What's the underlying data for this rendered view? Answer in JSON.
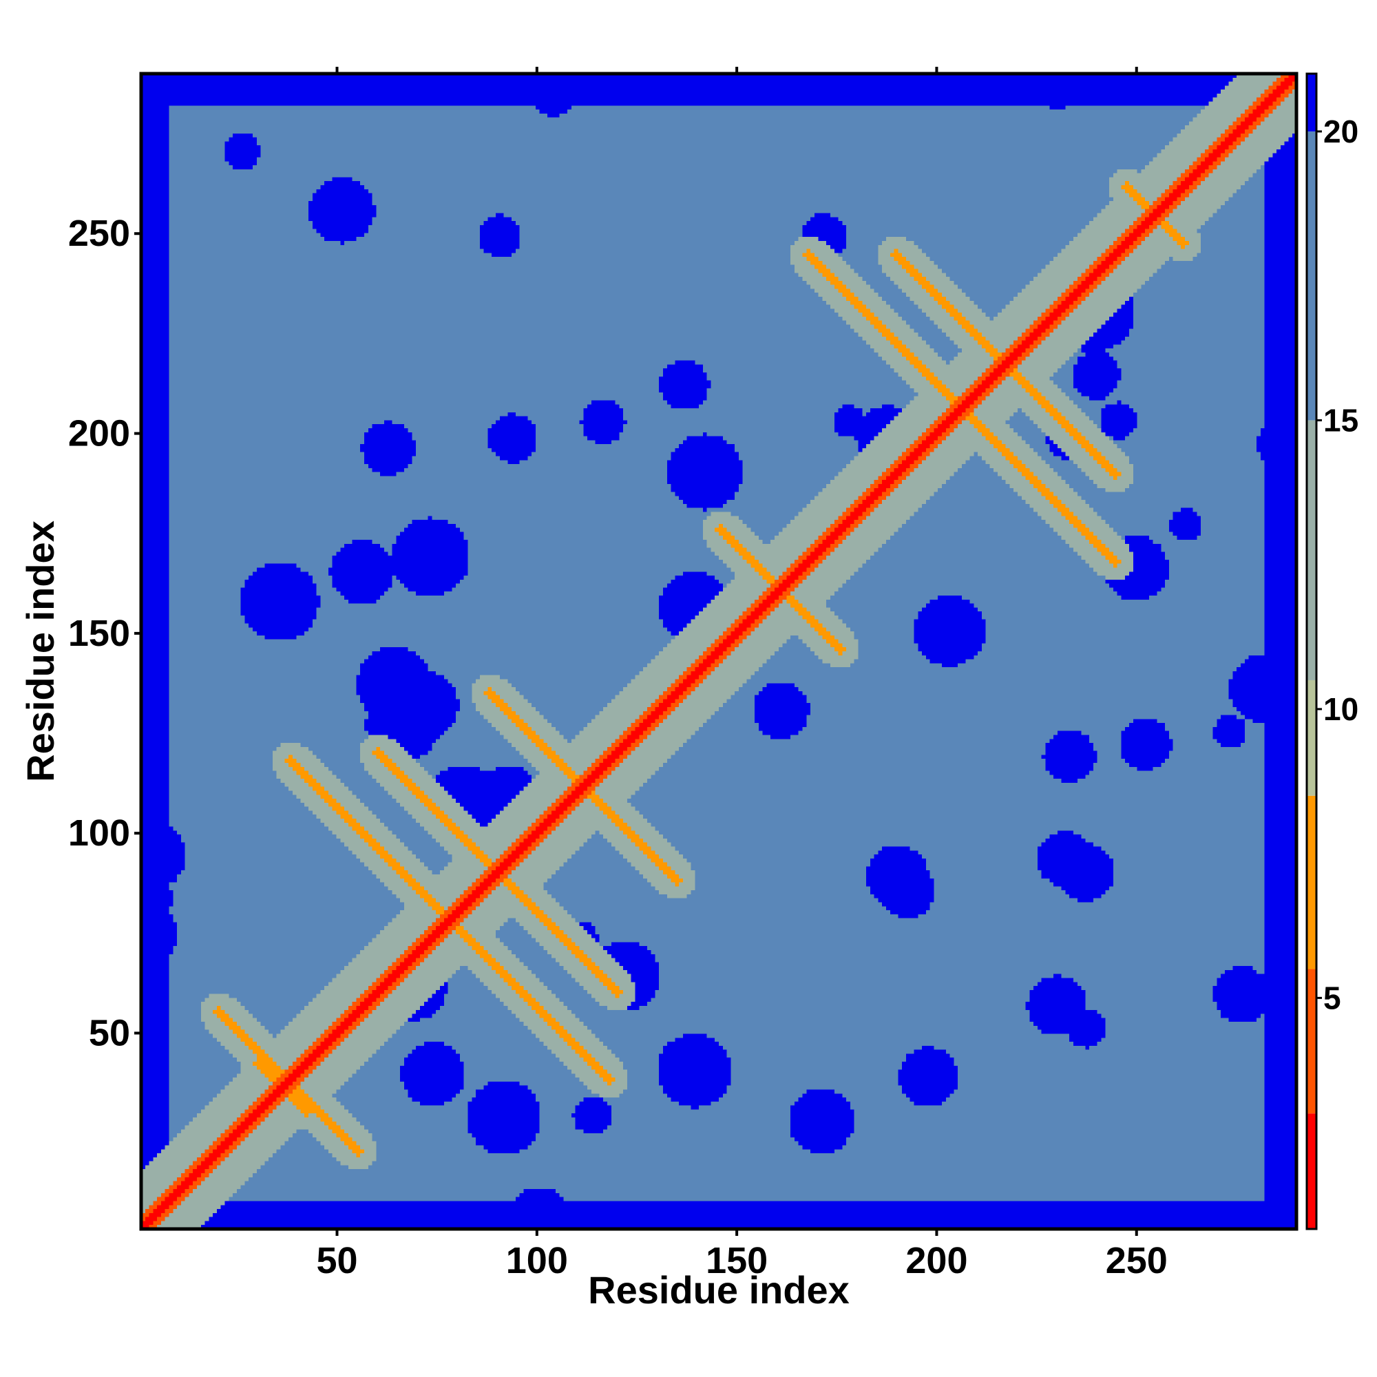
{
  "chart_data": {
    "type": "heatmap",
    "title": "",
    "xlabel": "Residue index",
    "ylabel": "Residue index",
    "n_residues": 290,
    "xlim": [
      1,
      290
    ],
    "ylim": [
      1,
      290
    ],
    "x_ticks": [
      50,
      100,
      150,
      200,
      250
    ],
    "y_ticks": [
      50,
      100,
      150,
      200,
      250
    ],
    "colorbar": {
      "range": [
        1,
        21
      ],
      "ticks": [
        5,
        10,
        15,
        20
      ],
      "bands": [
        {
          "from": 1,
          "to": 3,
          "color": "#ff0000"
        },
        {
          "from": 3,
          "to": 5.5,
          "color": "#ff5500"
        },
        {
          "from": 5.5,
          "to": 8.5,
          "color": "#ff9900"
        },
        {
          "from": 8.5,
          "to": 10.5,
          "color": "#b8c49a"
        },
        {
          "from": 10.5,
          "to": 15,
          "color": "#9ab0a8"
        },
        {
          "from": 15,
          "to": 20,
          "color": "#5a87b9"
        },
        {
          "from": 20,
          "to": 21,
          "color": "#0000ee"
        }
      ]
    },
    "colors": {
      "very_close": "#ff0000",
      "close": "#ff9900",
      "mid": "#b8c49a",
      "background": "#5a87b9",
      "far": "#0000ee"
    },
    "features": {
      "main_diagonal": {
        "from": 1,
        "to": 290,
        "value": 2
      },
      "antiparallel_contacts": [
        {
          "start": [
            20,
            55
          ],
          "end": [
            55,
            20
          ]
        },
        {
          "start": [
            30,
            42
          ],
          "end": [
            42,
            30
          ]
        },
        {
          "start": [
            38,
            118
          ],
          "end": [
            118,
            38
          ]
        },
        {
          "start": [
            60,
            120
          ],
          "end": [
            120,
            60
          ]
        },
        {
          "start": [
            88,
            135
          ],
          "end": [
            135,
            88
          ]
        },
        {
          "start": [
            128,
            95
          ],
          "end": [
            135,
            88
          ]
        },
        {
          "start": [
            146,
            176
          ],
          "end": [
            176,
            146
          ]
        },
        {
          "start": [
            168,
            245
          ],
          "end": [
            245,
            168
          ]
        },
        {
          "start": [
            190,
            245
          ],
          "end": [
            245,
            190
          ]
        },
        {
          "start": [
            248,
            262
          ],
          "end": [
            262,
            248
          ]
        }
      ],
      "far_regions": [
        {
          "x": [
            1,
            10
          ],
          "y": [
            1,
            290
          ]
        },
        {
          "x": [
            280,
            290
          ],
          "y": [
            1,
            290
          ]
        },
        {
          "x": [
            1,
            290
          ],
          "y": [
            1,
            10
          ]
        },
        {
          "x": [
            1,
            290
          ],
          "y": [
            280,
            290
          ]
        }
      ]
    }
  }
}
